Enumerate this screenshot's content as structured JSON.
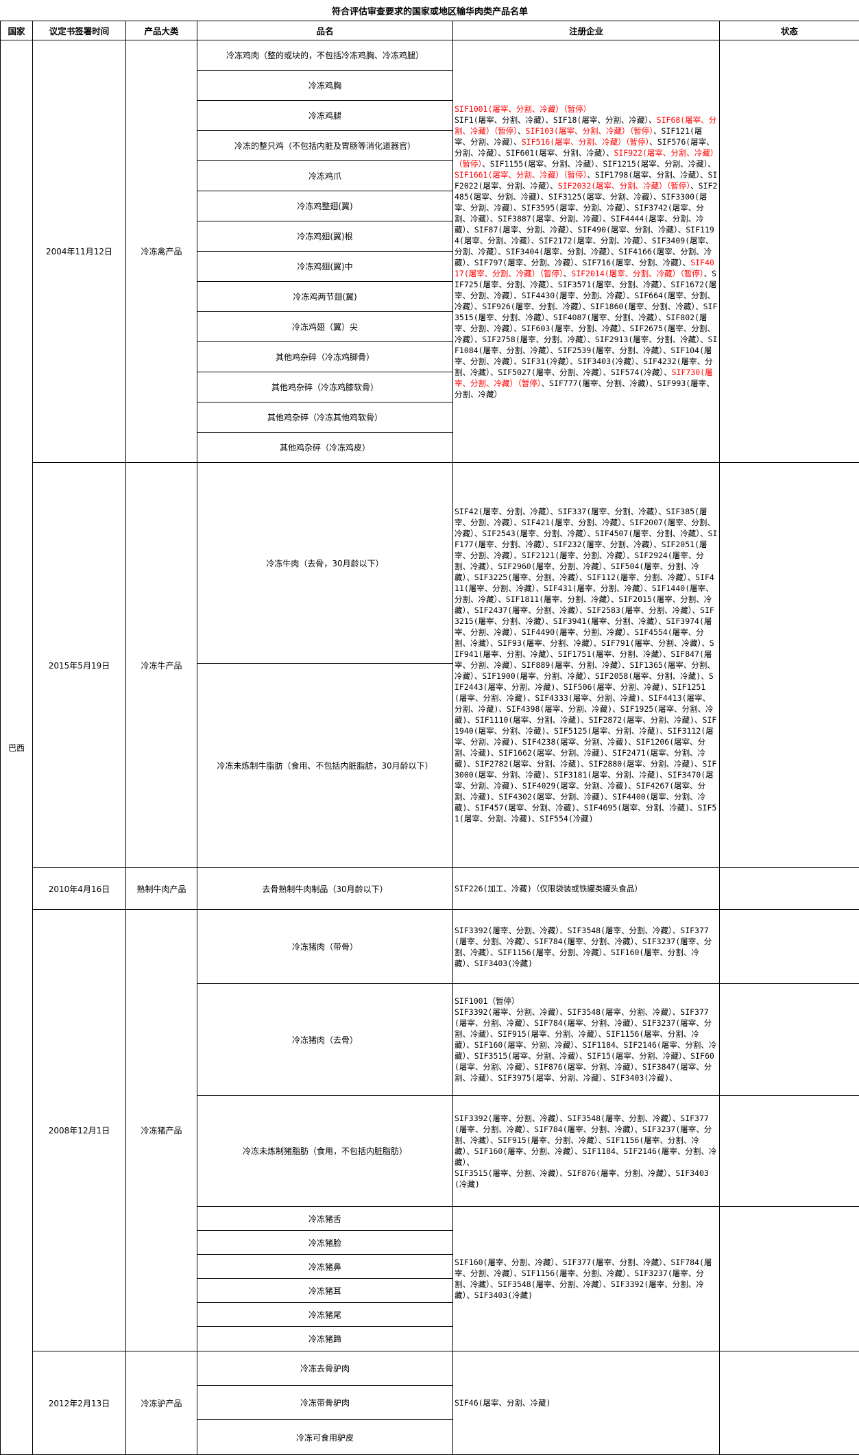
{
  "title": "符合评估审查要求的国家或地区输华肉类产品名单",
  "headers": {
    "country": "国家",
    "date": "议定书签署时间",
    "category": "产品大类",
    "product": "品名",
    "enterprise": "注册企业",
    "status": "状态"
  },
  "colors": {
    "suspended": "#ff0000",
    "normal": "#000000"
  },
  "country": "巴西",
  "groups": [
    {
      "date": "2004年11月12日",
      "category": "冷冻禽产品",
      "products": [
        "冷冻鸡肉（整的或块的，不包括冷冻鸡胸、冷冻鸡腿）",
        "冷冻鸡胸",
        "冷冻鸡腿",
        "冷冻的整只鸡（不包括内脏及胃肠等消化道器官）",
        "冷冻鸡爪",
        "冷冻鸡整翅(翼)",
        "冷冻鸡翅(翼)根",
        "冷冻鸡翅(翼)中",
        "冷冻鸡两节翅(翼)",
        "冷冻鸡翅（翼）尖",
        "其他鸡杂碎（冷冻鸡脚骨）",
        "其他鸡杂碎（冷冻鸡膝软骨）",
        "其他鸡杂碎（冷冻其他鸡软骨）",
        "其他鸡杂碎（冷冻鸡皮）"
      ],
      "enterprises": [
        [
          {
            "text": "SIF1001(屠宰、分割、冷藏）（暂停）",
            "suspended": true
          },
          {
            "text": "\nSIF1(屠宰、分割、冷藏）、SIF18(屠宰、分割、冷藏）、",
            "suspended": false
          },
          {
            "text": "SIF68(屠宰、分割、冷藏）（暂停）",
            "suspended": true
          },
          {
            "text": "、",
            "suspended": false
          },
          {
            "text": "SIF103(屠宰、分割、冷藏）（暂停）",
            "suspended": true
          },
          {
            "text": "、SIF121(屠宰、分割、冷藏）、",
            "suspended": false
          },
          {
            "text": "SIF516(屠宰、分割、冷藏）（暂停）",
            "suspended": true
          },
          {
            "text": "、SIF576(屠宰、分割、冷藏）、SIF601(屠宰、分割、冷藏）、",
            "suspended": false
          },
          {
            "text": "SIF922(屠宰、分割、冷藏）（暂停）",
            "suspended": true
          },
          {
            "text": "、SIF1155(屠宰、分割、冷藏）、SIF1215(屠宰、分割、冷藏）、",
            "suspended": false
          },
          {
            "text": "SIF1661(屠宰、分割、冷藏）（暂停）",
            "suspended": true
          },
          {
            "text": "、SIF1798(屠宰、分割、冷藏）、SIF2022(屠宰、分割、冷藏）、",
            "suspended": false
          },
          {
            "text": "SIF2032(屠宰、分割、冷藏）（暂停）",
            "suspended": true
          },
          {
            "text": "、SIF2485(屠宰、分割、冷藏）、SIF3125(屠宰、分割、冷藏）、SIF3300(屠宰、分割、冷藏）、SIF3595(屠宰、分割、冷藏）、SIF3742(屠宰、分割、冷藏）、SIF3887(屠宰、分割、冷藏）、SIF4444(屠宰、分割、冷藏）、SIF87(屠宰、分割、冷藏）、SIF490(屠宰、分割、冷藏）、SIF1194(屠宰、分割、冷藏）、SIF2172(屠宰、分割、冷藏）、SIF3409(屠宰、分割、冷藏）、SIF3404(屠宰、分割、冷藏）、SIF4166(屠宰、分割、冷藏）、SIF797(屠宰、分割、冷藏）、SIF716(屠宰、分割、冷藏）、",
            "suspended": false
          },
          {
            "text": "SIF4017(屠宰、分割、冷藏）（暂停）",
            "suspended": true
          },
          {
            "text": "、",
            "suspended": false
          },
          {
            "text": "SIF2014(屠宰、分割、冷藏）（暂停）",
            "suspended": true
          },
          {
            "text": "、SIF725(屠宰、分割、冷藏）、SIF3571(屠宰、分割、冷藏）、SIF1672(屠宰、分割、冷藏）、SIF4430(屠宰、分割、冷藏）、SIF664(屠宰、分割、冷藏）、SIF926(屠宰、分割、冷藏）、SIF1860(屠宰、分割、冷藏）、SIF3515(屠宰、分割、冷藏）、SIF4087(屠宰、分割、冷藏）、SIF802(屠宰、分割、冷藏）、SIF603(屠宰、分割、冷藏）、SIF2675(屠宰、分割、冷藏）、SIF2758(屠宰、分割、冷藏）、SIF2913(屠宰、分割、冷藏）、SIF1084(屠宰、分割、冷藏）、SIF2539(屠宰、分割、冷藏）、SIF104(屠宰、分割、冷藏）、SIF31(冷藏）、SIF3403(冷藏）、SIF4232(屠宰、分割、冷藏）、SIF5027(屠宰、分割、冷藏）、SIF574(冷藏）、",
            "suspended": false
          },
          {
            "text": "SIF730(屠宰、分割、冷藏）（暂停）",
            "suspended": true
          },
          {
            "text": "、SIF777(屠宰、分割、冷藏）、SIF993(屠宰、分割、冷藏）",
            "suspended": false
          }
        ]
      ]
    },
    {
      "date": "2015年5月19日",
      "category": "冷冻牛产品",
      "products": [
        "冷冻牛肉（去骨，30月龄以下）",
        "冷冻未炼制牛脂肪（食用、不包括内脏脂肪，30月龄以下）"
      ],
      "enterprises": [
        [
          {
            "text": "SIF42(屠宰、分割、冷藏）、SIF337(屠宰、分割、冷藏）、SIF385(屠宰、分割、冷藏）、SIF421(屠宰、分割、冷藏）、SIF2007(屠宰、分割、冷藏）、SIF2543(屠宰、分割、冷藏）、SIF4507(屠宰、分割、冷藏）、SIF177(屠宰、分割、冷藏）、SIF232(屠宰、分割、冷藏）、SIF2051(屠宰、分割、冷藏）、SIF2121(屠宰、分割、冷藏）、SIF2924(屠宰、分割、冷藏）、SIF2960(屠宰、分割、冷藏）、SIF504(屠宰、分割、冷藏）、SIF3225(屠宰、分割、冷藏）、SIF112(屠宰、分割、冷藏）、SIF411(屠宰、分割、冷藏）、SIF431(屠宰、分割、冷藏）、SIF1440(屠宰、分割、冷藏）、SIF1811(屠宰、分割、冷藏）、SIF2015(屠宰、分割、冷藏）、SIF2437(屠宰、分割、冷藏）、SIF2583(屠宰、分割、冷藏）、SIF3215(屠宰、分割、冷藏）、SIF3941(屠宰、分割、冷藏）、SIF3974(屠宰、分割、冷藏）、SIF4490(屠宰、分割、冷藏）、SIF4554(屠宰、分割、冷藏）、SIF93(屠宰、分割、冷藏）、SIF791(屠宰、分割、冷藏）、SIF941(屠宰、分割、冷藏）、SIF1751(屠宰、分割、冷藏）、SIF847(屠宰、分割、冷藏）、SIF889(屠宰、分割、冷藏）、SIF1365(屠宰、分割、冷藏）、SIF1900(屠宰、分割、冷藏）、SIF2058(屠宰、分割、冷藏)、SIF2443(屠宰、分割、冷藏)、SIF506(屠宰、分割、冷藏)、SIF1251(屠宰、分割、冷藏)、SIF4333(屠宰、分割、冷藏)、SIF4413(屠宰、分割、冷藏)、SIF4398(屠宰、分割、冷藏)、SIF1925(屠宰、分割、冷藏)、SIF1110(屠宰、分割、冷藏)、SIF2872(屠宰、分割、冷藏)、SIF1940(屠宰、分割、冷藏)、SIF5125(屠宰、分割、冷藏)、SIF3112(屠宰、分割、冷藏)、SIF4238(屠宰、分割、冷藏)、SIF1206(屠宰、分割、冷藏)、SIF1662(屠宰、分割、冷藏)、SIF2471(屠宰、分割、冷藏)、SIF2782(屠宰、分割、冷藏)、SIF2880(屠宰、分割、冷藏)、SIF3000(屠宰、分割、冷藏)、SIF3181(屠宰、分割、冷藏)、SIF3470(屠宰、分割、冷藏)、SIF4029(屠宰、分割、冷藏)、SIF4267(屠宰、分割、冷藏)、SIF4302(屠宰、分割、冷藏)、SIF4400(屠宰、分割、冷藏)、SIF457(屠宰、分割、冷藏)、SIF4695(屠宰、分割、冷藏)、SIF51(屠宰、分割、冷藏)、SIF554(冷藏)",
            "suspended": false
          }
        ]
      ]
    },
    {
      "date": "2010年4月16日",
      "category": "熟制牛肉产品",
      "products": [
        "去骨熟制牛肉制品（30月龄以下）"
      ],
      "enterprises": [
        [
          {
            "text": "SIF226(加工、冷藏)（仅限袋装或铁罐类罐头食品）",
            "suspended": false
          }
        ]
      ]
    },
    {
      "date": "2008年12月1日",
      "category": "冷冻猪产品",
      "products": [
        "冷冻猪肉（带骨）",
        "冷冻猪肉（去骨）",
        "冷冻未炼制猪脂肪（食用，不包括内脏脂肪）",
        "冷冻猪舌",
        "冷冻猪脸",
        "冷冻猪鼻",
        "冷冻猪耳",
        "冷冻猪尾",
        "冷冻猪蹄"
      ],
      "enterprises": [
        [
          {
            "text": "SIF3392(屠宰、分割、冷藏）、SIF3548(屠宰、分割、冷藏）、SIF377(屠宰、分割、冷藏）、SIF784(屠宰、分割、冷藏）、SIF3237(屠宰、分割、冷藏）、SIF1156(屠宰、分割、冷藏）、SIF160(屠宰、分割、冷藏）、SIF3403(冷藏)",
            "suspended": false
          }
        ],
        [
          {
            "text": "SIF1001（暂停）\nSIF3392(屠宰、分割、冷藏）、SIF3548(屠宰、分割、冷藏）、SIF377(屠宰、分割、冷藏）、SIF784(屠宰、分割、冷藏）、SIF3237(屠宰、分割、冷藏）、SIF915(屠宰、分割、冷藏）、SIF1156(屠宰、分割、冷藏）、SIF160(屠宰、分割、冷藏）、SIF1184、SIF2146(屠宰、分割、冷藏）、SIF3515(屠宰、分割、冷藏）、SIF15(屠宰、分割、冷藏）、SIF60(屠宰、分割、冷藏）、SIF876(屠宰、分割、冷藏）、SIF3847(屠宰、分割、冷藏）、SIF3975(屠宰、分割、冷藏）、SIF3403(冷藏)、",
            "suspended": false
          }
        ],
        [
          {
            "text": "SIF3392(屠宰、分割、冷藏）、SIF3548(屠宰、分割、冷藏）、SIF377(屠宰、分割、冷藏）、SIF784(屠宰、分割、冷藏）、SIF3237(屠宰、分割、冷藏）、SIF915(屠宰、分割、冷藏）、SIF1156(屠宰、分割、冷藏）、SIF160(屠宰、分割、冷藏）、SIF1184、SIF2146(屠宰、分割、冷藏）、\nSIF3515(屠宰、分割、冷藏）、SIF876(屠宰、分割、冷藏）、SIF3403(冷藏)",
            "suspended": false
          }
        ],
        [
          {
            "text": "SIF160(屠宰、分割、冷藏）、SIF377(屠宰、分割、冷藏）、SIF784(屠宰、分割、冷藏）、SIF1156(屠宰、分割、冷藏）、SIF3237(屠宰、分割、冷藏）、SIF3548(屠宰、分割、冷藏）、SIF3392(屠宰、分割、冷藏）、SIF3403(冷藏)",
            "suspended": false
          }
        ]
      ]
    },
    {
      "date": "2012年2月13日",
      "category": "冷冻驴产品",
      "products": [
        "冷冻去骨驴肉",
        "冷冻带骨驴肉",
        "冷冻可食用驴皮"
      ],
      "enterprises": [
        [
          {
            "text": "SIF46(屠宰、分割、冷藏)",
            "suspended": false
          }
        ]
      ]
    }
  ]
}
